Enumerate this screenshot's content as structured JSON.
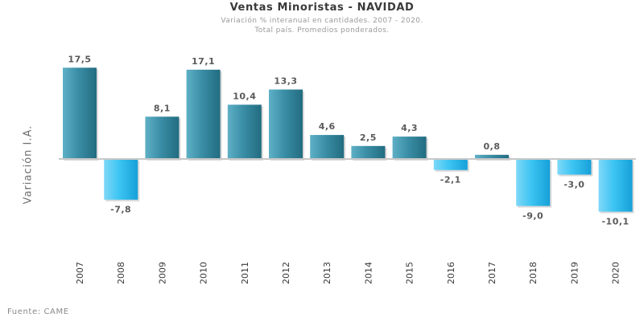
{
  "header": {
    "title": "Ventas Minoristas - NAVIDAD",
    "subtitle_line1": "Variación % interanual en cantidades. 2007 - 2020.",
    "subtitle_line2": "Total país. Promedios ponderados."
  },
  "footer": {
    "source": "Fuente: CAME"
  },
  "colors": {
    "positive_bar": "#3a8ea6",
    "negative_bar": "#3cc4f2",
    "axis_line": "#bfbfbf"
  },
  "chart_data": {
    "type": "bar",
    "title": "Ventas Minoristas - NAVIDAD",
    "subtitle": "Variación % interanual en cantidades. 2007 - 2020. Total país. Promedios ponderados.",
    "xlabel": "",
    "ylabel": "Variación I.A.",
    "categories": [
      "2007",
      "2008",
      "2009",
      "2010",
      "2011",
      "2012",
      "2013",
      "2014",
      "2015",
      "2016",
      "2017",
      "2018",
      "2019",
      "2020"
    ],
    "values": [
      17.5,
      -7.8,
      8.1,
      17.1,
      10.4,
      13.3,
      4.6,
      2.5,
      4.3,
      -2.1,
      0.8,
      -9.0,
      -3.0,
      -10.1
    ],
    "value_labels": [
      "17,5",
      "-7,8",
      "8,1",
      "17,1",
      "10,4",
      "13,3",
      "4,6",
      "2,5",
      "4,3",
      "-2,1",
      "0,8",
      "-9,0",
      "-3,0",
      "-10,1"
    ],
    "ylim": [
      -20,
      20
    ],
    "grid": false,
    "legend": "none"
  }
}
